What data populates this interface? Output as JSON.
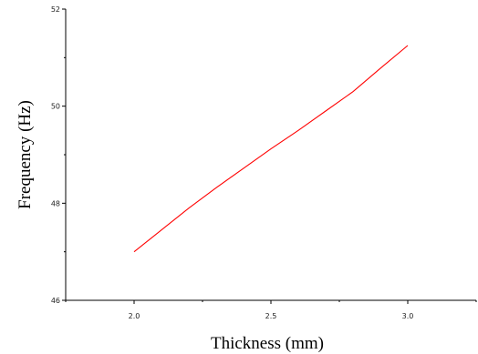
{
  "chart_data": {
    "type": "line",
    "title": "",
    "xlabel": "Thickness (mm)",
    "ylabel": "Frequency (Hz)",
    "xlim": [
      1.75,
      3.25
    ],
    "ylim": [
      46,
      52
    ],
    "x_ticks": [
      2.0,
      2.5,
      3.0
    ],
    "x_tick_labels": [
      "2.0",
      "2.5",
      "3.0"
    ],
    "y_ticks": [
      46,
      48,
      50,
      52
    ],
    "y_tick_labels": [
      "46",
      "48",
      "50",
      "52"
    ],
    "grid": false,
    "legend": "none",
    "series": [
      {
        "color": "#ff0000",
        "x": [
          2.0,
          2.1,
          2.2,
          2.3,
          2.4,
          2.5,
          2.6,
          2.7,
          2.8,
          2.9,
          3.0
        ],
        "y": [
          47.0,
          47.45,
          47.9,
          48.32,
          48.72,
          49.12,
          49.5,
          49.9,
          50.3,
          50.78,
          51.25
        ]
      }
    ]
  }
}
